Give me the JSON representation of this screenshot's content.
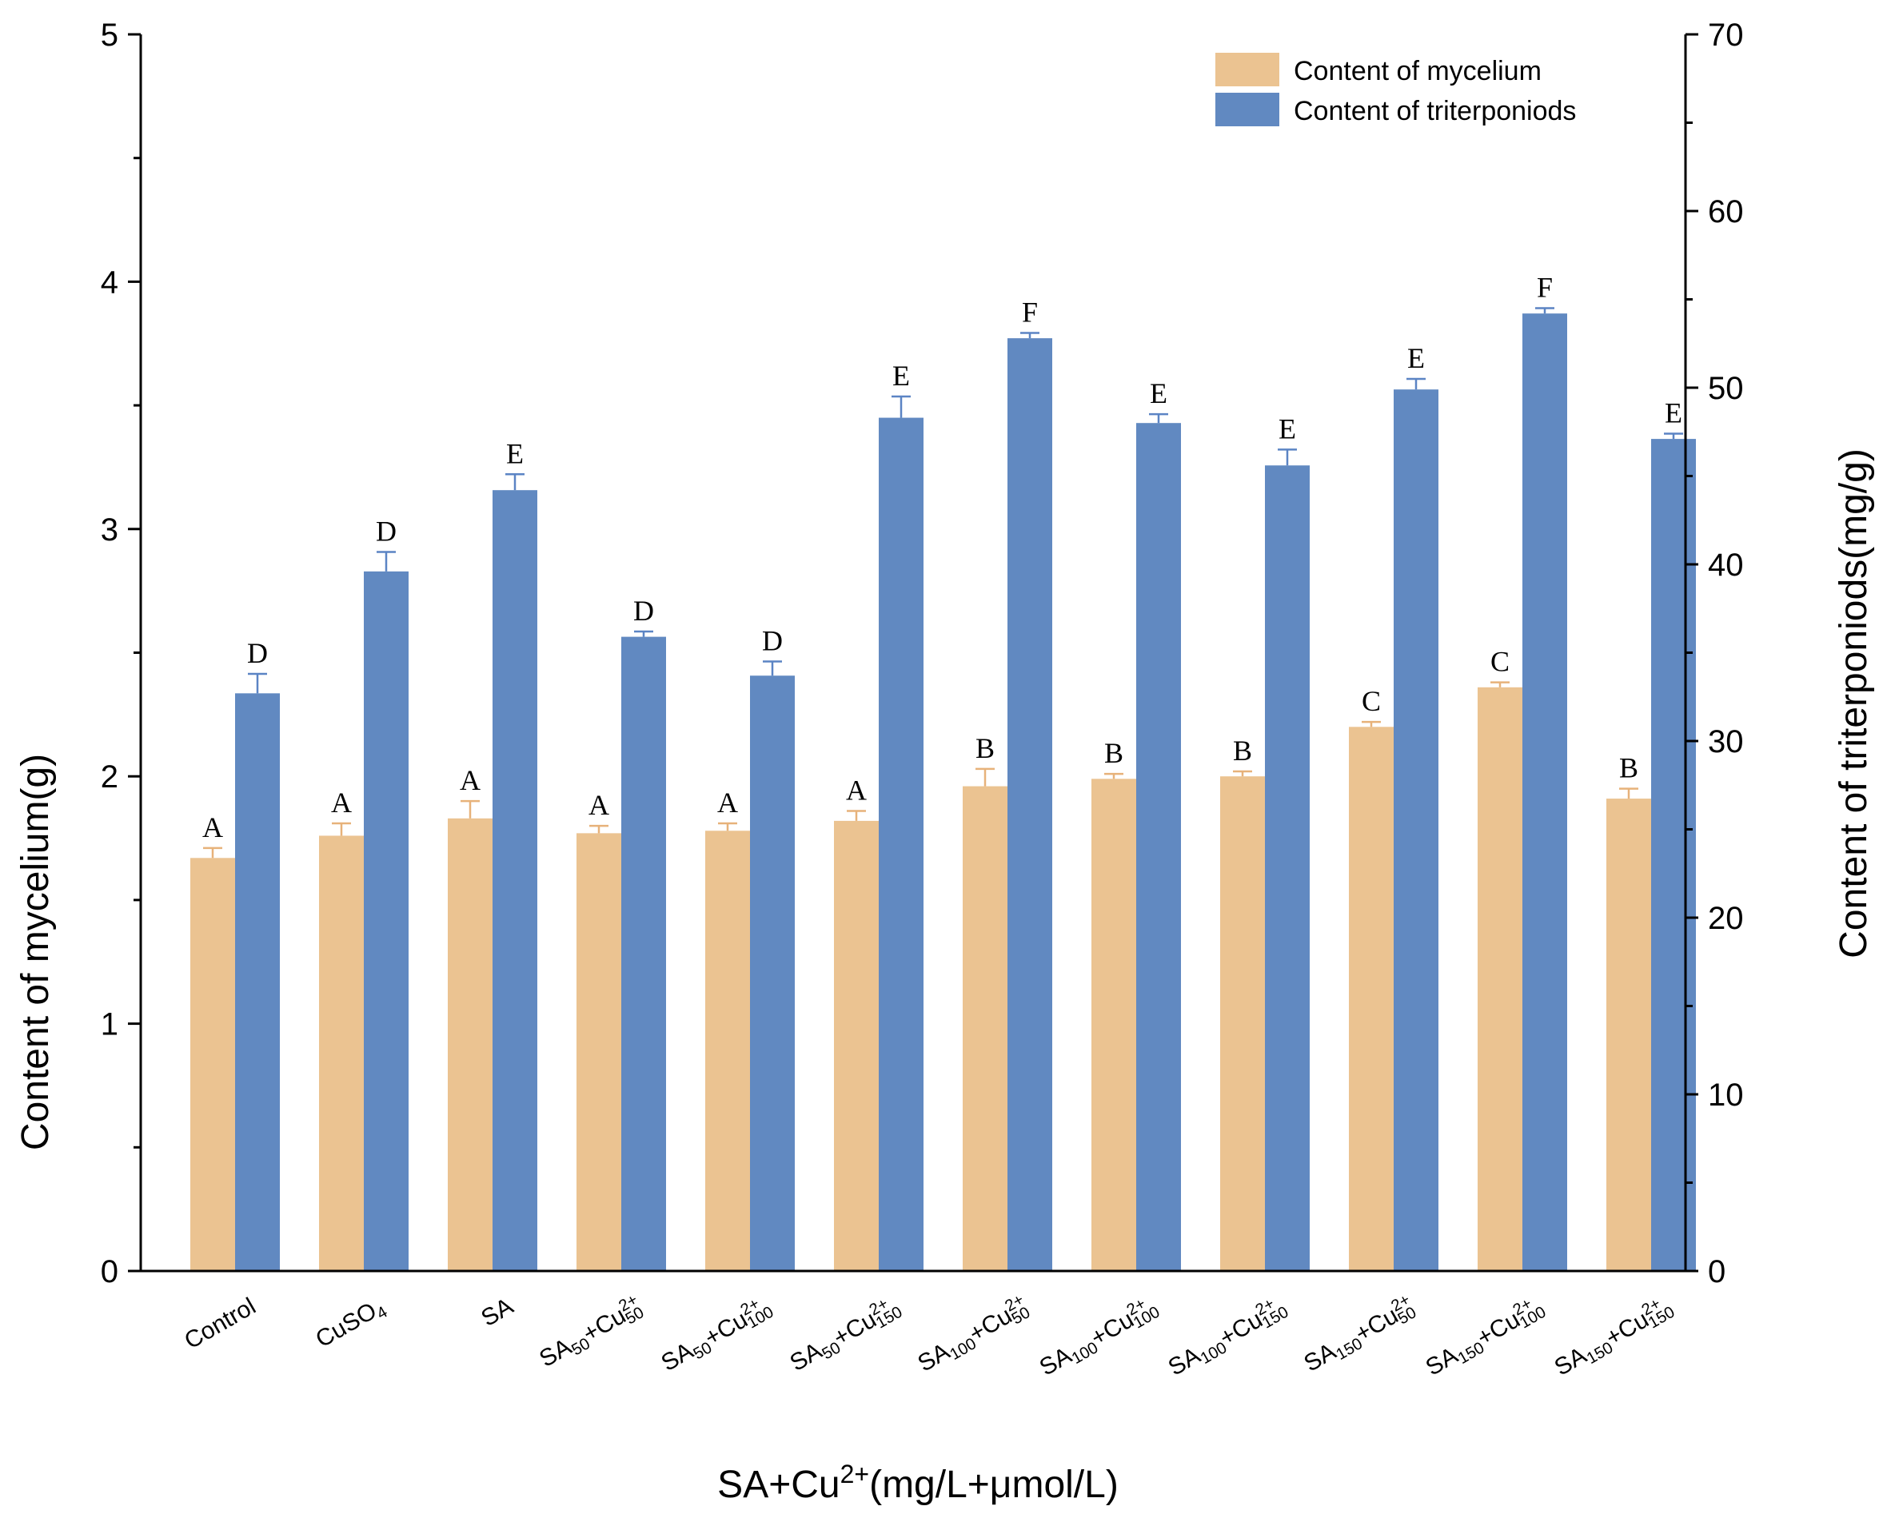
{
  "chart_data": {
    "type": "bar",
    "xlabel": "SA+Cu²⁺(mg/L+μmol/L)",
    "ylabel": "Content of mycelium(g)",
    "y2label": "Content of triterponiods(mg/g)",
    "ylim": [
      0,
      5
    ],
    "y2lim": [
      0,
      70
    ],
    "yticks": [
      "0",
      "1",
      "2",
      "3",
      "4",
      "5"
    ],
    "y2ticks": [
      "0",
      "10",
      "20",
      "30",
      "40",
      "50",
      "60",
      "70"
    ],
    "legend_position": "top-right",
    "categories": [
      {
        "base": "Control"
      },
      {
        "base": "CuSO",
        "sub1": "4"
      },
      {
        "base": "SA"
      },
      {
        "base": "SA",
        "sub1": "50",
        "mid": "+Cu",
        "sup2": "2+",
        "sub2": "50"
      },
      {
        "base": "SA",
        "sub1": "50",
        "mid": "+Cu",
        "sup2": "2+",
        "sub2": "100"
      },
      {
        "base": "SA",
        "sub1": "50",
        "mid": "+Cu",
        "sup2": "2+",
        "sub2": "150"
      },
      {
        "base": "SA",
        "sub1": "100",
        "mid": "+Cu",
        "sup2": "2+",
        "sub2": "50"
      },
      {
        "base": "SA",
        "sub1": "100",
        "mid": "+Cu",
        "sup2": "2+",
        "sub2": "100"
      },
      {
        "base": "SA",
        "sub1": "100",
        "mid": "+Cu",
        "sup2": "2+",
        "sub2": "150"
      },
      {
        "base": "SA",
        "sub1": "150",
        "mid": "+Cu",
        "sup2": "2+",
        "sub2": "50"
      },
      {
        "base": "SA",
        "sub1": "150",
        "mid": "+Cu",
        "sup2": "2+",
        "sub2": "100"
      },
      {
        "base": "SA",
        "sub1": "150",
        "mid": "+Cu",
        "sup2": "2+",
        "sub2": "150"
      }
    ],
    "series": [
      {
        "name": "Content of mycelium",
        "axis": "left",
        "color": "#ebc391",
        "values": [
          1.67,
          1.76,
          1.83,
          1.77,
          1.78,
          1.82,
          1.96,
          1.99,
          2.0,
          2.2,
          2.36,
          1.91
        ],
        "errors": [
          0.04,
          0.05,
          0.07,
          0.03,
          0.03,
          0.04,
          0.07,
          0.02,
          0.02,
          0.02,
          0.02,
          0.04
        ],
        "labels": [
          "A",
          "A",
          "A",
          "A",
          "A",
          "A",
          "B",
          "B",
          "B",
          "C",
          "C",
          "B"
        ]
      },
      {
        "name": "Content of triterponiods",
        "axis": "right",
        "color": "#6189c1",
        "values": [
          32.7,
          39.6,
          44.2,
          35.9,
          33.7,
          48.3,
          52.8,
          48.0,
          45.6,
          49.9,
          54.2,
          47.1
        ],
        "errors": [
          1.1,
          1.1,
          0.9,
          0.3,
          0.8,
          1.2,
          0.3,
          0.5,
          0.9,
          0.6,
          0.3,
          0.3
        ],
        "labels": [
          "D",
          "D",
          "E",
          "D",
          "D",
          "E",
          "F",
          "E",
          "E",
          "E",
          "F",
          "E"
        ]
      }
    ]
  }
}
